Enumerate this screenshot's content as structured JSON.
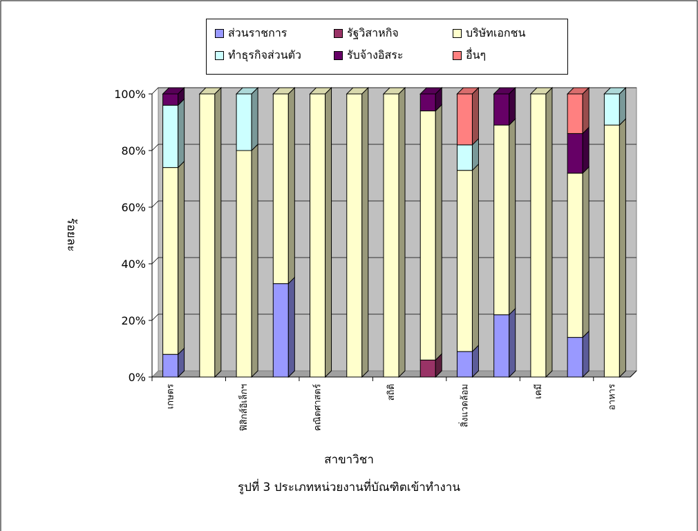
{
  "chart_data": {
    "type": "bar",
    "stacked": true,
    "three_d": true,
    "caption": "รูปที่ 3 ประเภทหน่วยงานที่บัณฑิตเข้าทำงาน",
    "xlabel": "สาขาวิชา",
    "ylabel": "ร้อยละ",
    "ylim": [
      0,
      100
    ],
    "y_ticks": [
      "0%",
      "20%",
      "40%",
      "60%",
      "80%",
      "100%"
    ],
    "grid": true,
    "legend_position": "top",
    "categories": [
      "เกษตร",
      "",
      "ฟิสิกส์อิเล็กฯ",
      "",
      "คณิตศาสตร์",
      "",
      "สถิติ",
      "",
      "สิ่งแวดล้อม",
      "",
      "เคมี",
      "",
      "อาหาร"
    ],
    "series": [
      {
        "name": "ส่วนราชการ",
        "color": "#9999ff",
        "values": [
          8,
          0,
          0,
          33,
          0,
          0,
          0,
          0,
          9,
          22,
          0,
          14,
          0
        ]
      },
      {
        "name": "รัฐวิสาหกิจ",
        "color": "#993366",
        "values": [
          0,
          0,
          0,
          0,
          0,
          0,
          0,
          6,
          0,
          0,
          0,
          0,
          0
        ]
      },
      {
        "name": "บริษัทเอกชน",
        "color": "#ffffcc",
        "values": [
          66,
          100,
          80,
          67,
          100,
          100,
          100,
          88,
          64,
          67,
          100,
          58,
          89
        ]
      },
      {
        "name": "ทำธุรกิจส่วนตัว",
        "color": "#ccffff",
        "values": [
          22,
          0,
          20,
          0,
          0,
          0,
          0,
          0,
          9,
          0,
          0,
          0,
          11
        ]
      },
      {
        "name": "รับจ้างอิสระ",
        "color": "#660066",
        "values": [
          4,
          0,
          0,
          0,
          0,
          0,
          0,
          6,
          0,
          11,
          0,
          14,
          0
        ]
      },
      {
        "name": "อื่นๆ",
        "color": "#ff8080",
        "values": [
          0,
          0,
          0,
          0,
          0,
          0,
          0,
          0,
          18,
          0,
          0,
          14,
          0
        ]
      }
    ]
  }
}
